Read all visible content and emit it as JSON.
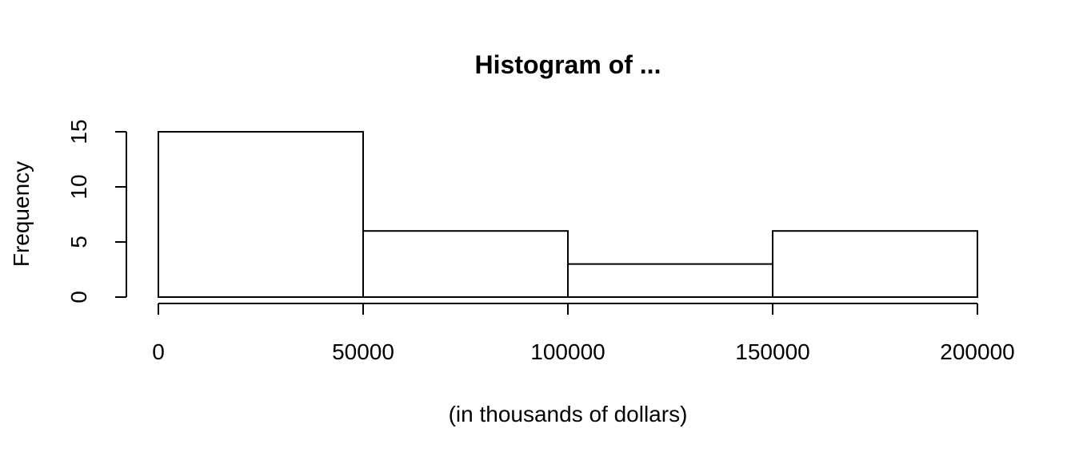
{
  "chart_data": {
    "type": "bar",
    "title": "Histogram of ...",
    "xlabel": "(in thousands of dollars)",
    "ylabel": "Frequency",
    "bins": [
      {
        "start": 0,
        "end": 50000,
        "count": 15
      },
      {
        "start": 50000,
        "end": 100000,
        "count": 6
      },
      {
        "start": 100000,
        "end": 150000,
        "count": 3
      },
      {
        "start": 150000,
        "end": 200000,
        "count": 6
      }
    ],
    "x_ticks": [
      0,
      50000,
      100000,
      150000,
      200000
    ],
    "y_ticks": [
      0,
      5,
      10,
      15
    ],
    "xlim": [
      0,
      200000
    ],
    "ylim": [
      0,
      15
    ],
    "grid": false,
    "colors": {
      "bar_fill": "#ffffff",
      "bar_stroke": "#000000",
      "axis": "#000000",
      "text": "#000000"
    }
  }
}
